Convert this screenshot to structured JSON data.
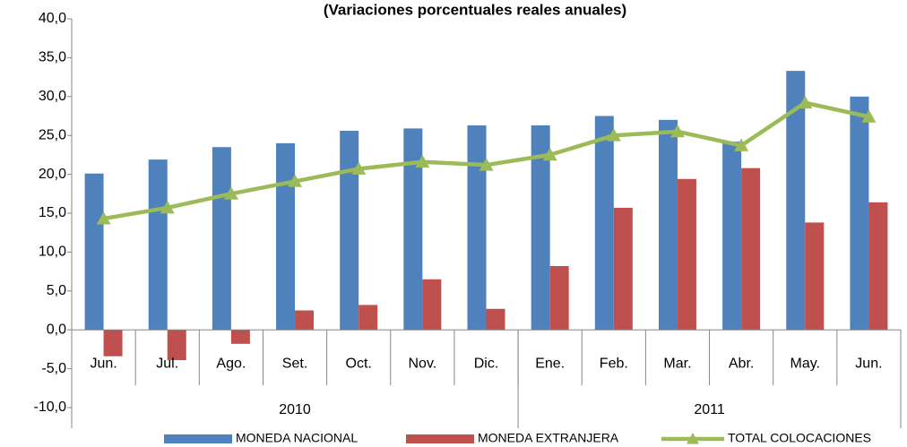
{
  "chart_data": {
    "type": "bar_line",
    "title": "(Variaciones porcentuales reales anuales)",
    "categories": [
      "Jun.",
      "Jul.",
      "Ago.",
      "Set.",
      "Oct.",
      "Nov.",
      "Dic.",
      "Ene.",
      "Feb.",
      "Mar.",
      "Abr.",
      "May.",
      "Jun."
    ],
    "x_groups": [
      {
        "label": "2010",
        "count": 7
      },
      {
        "label": "2011",
        "count": 6
      }
    ],
    "series": [
      {
        "name": "MONEDA NACIONAL",
        "color": "#4f81bd",
        "kind": "bar",
        "values": [
          20.1,
          21.9,
          23.5,
          24.0,
          25.6,
          25.9,
          26.3,
          26.3,
          27.5,
          27.0,
          24.2,
          33.3,
          30.0
        ]
      },
      {
        "name": "MONEDA EXTRANJERA",
        "color": "#c0504d",
        "kind": "bar",
        "values": [
          -3.4,
          -3.9,
          -1.8,
          2.5,
          3.2,
          6.5,
          2.7,
          8.2,
          15.7,
          19.4,
          20.8,
          13.8,
          16.4
        ]
      },
      {
        "name": "TOTAL COLOCACIONES",
        "color": "#9bbb59",
        "kind": "line",
        "values": [
          14.3,
          15.7,
          17.5,
          19.1,
          20.7,
          21.6,
          21.2,
          22.5,
          25.0,
          25.5,
          23.7,
          29.2,
          27.4
        ]
      }
    ],
    "ylim": [
      -10,
      40
    ],
    "yticks": [
      {
        "value": -10,
        "label": "-10,0"
      },
      {
        "value": -5,
        "label": "-5,0"
      },
      {
        "value": 0,
        "label": "0,0"
      },
      {
        "value": 5,
        "label": "5,0"
      },
      {
        "value": 10,
        "label": "10,0"
      },
      {
        "value": 15,
        "label": "15,0"
      },
      {
        "value": 20,
        "label": "20,0"
      },
      {
        "value": 25,
        "label": "25,0"
      },
      {
        "value": 30,
        "label": "30,0"
      },
      {
        "value": 35,
        "label": "35,0"
      },
      {
        "value": 40,
        "label": "40,0"
      }
    ],
    "grid": false
  }
}
